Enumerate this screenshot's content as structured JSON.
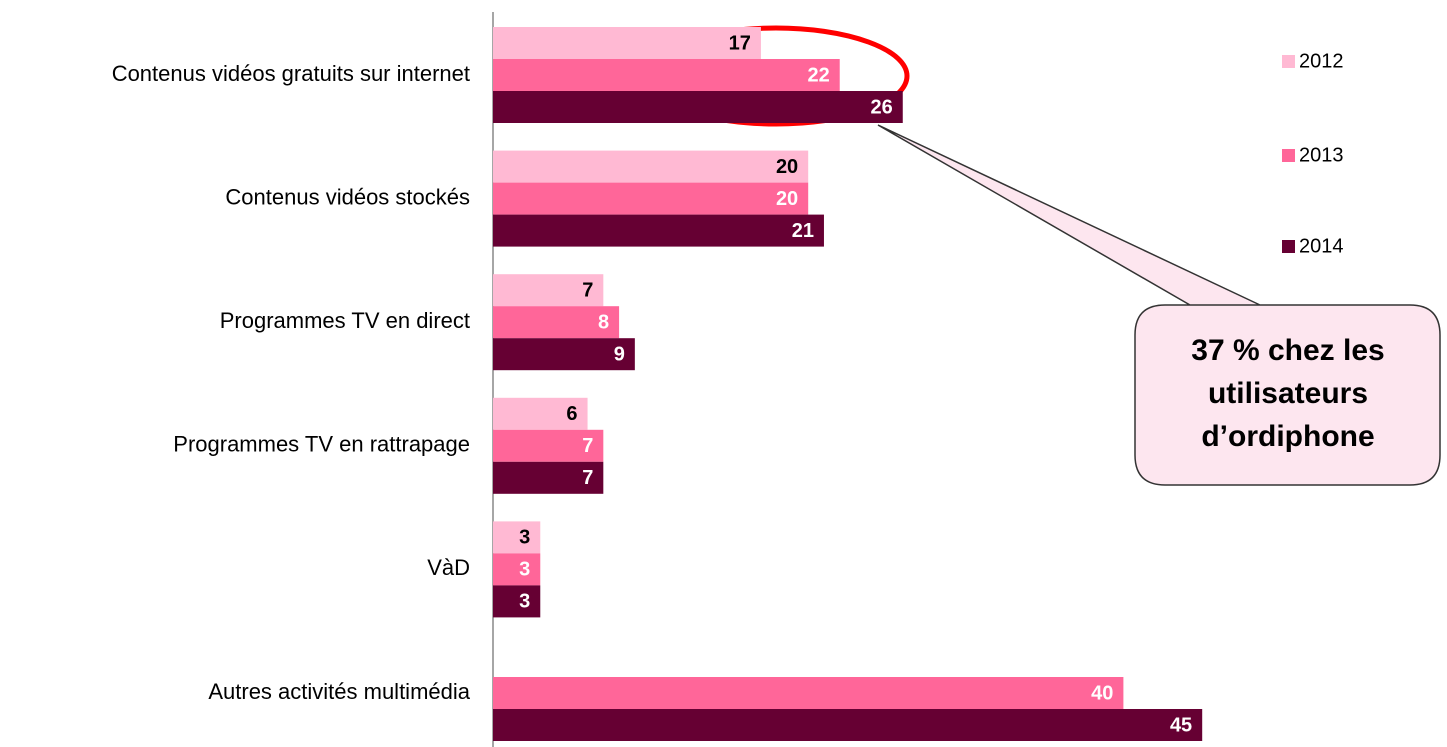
{
  "chart_data": {
    "type": "bar",
    "orientation": "horizontal",
    "categories": [
      "Contenus vidéos gratuits sur internet",
      "Contenus vidéos stockés",
      "Programmes TV en direct",
      "Programmes TV en rattrapage",
      "VàD",
      "Autres activités multimédia"
    ],
    "series": [
      {
        "name": "2012",
        "color": "#ffb9d3",
        "label_color": "#000000",
        "values": [
          17,
          20,
          7,
          6,
          3,
          null
        ]
      },
      {
        "name": "2013",
        "color": "#ff6699",
        "label_color": "#ffffff",
        "values": [
          22,
          20,
          8,
          7,
          3,
          40
        ]
      },
      {
        "name": "2014",
        "color": "#660033",
        "label_color": "#ffffff",
        "values": [
          26,
          21,
          9,
          7,
          3,
          45
        ]
      }
    ],
    "legend": "right",
    "annotation": [
      "37 % chez les",
      "utilisateurs",
      "d’ordiphone"
    ]
  }
}
